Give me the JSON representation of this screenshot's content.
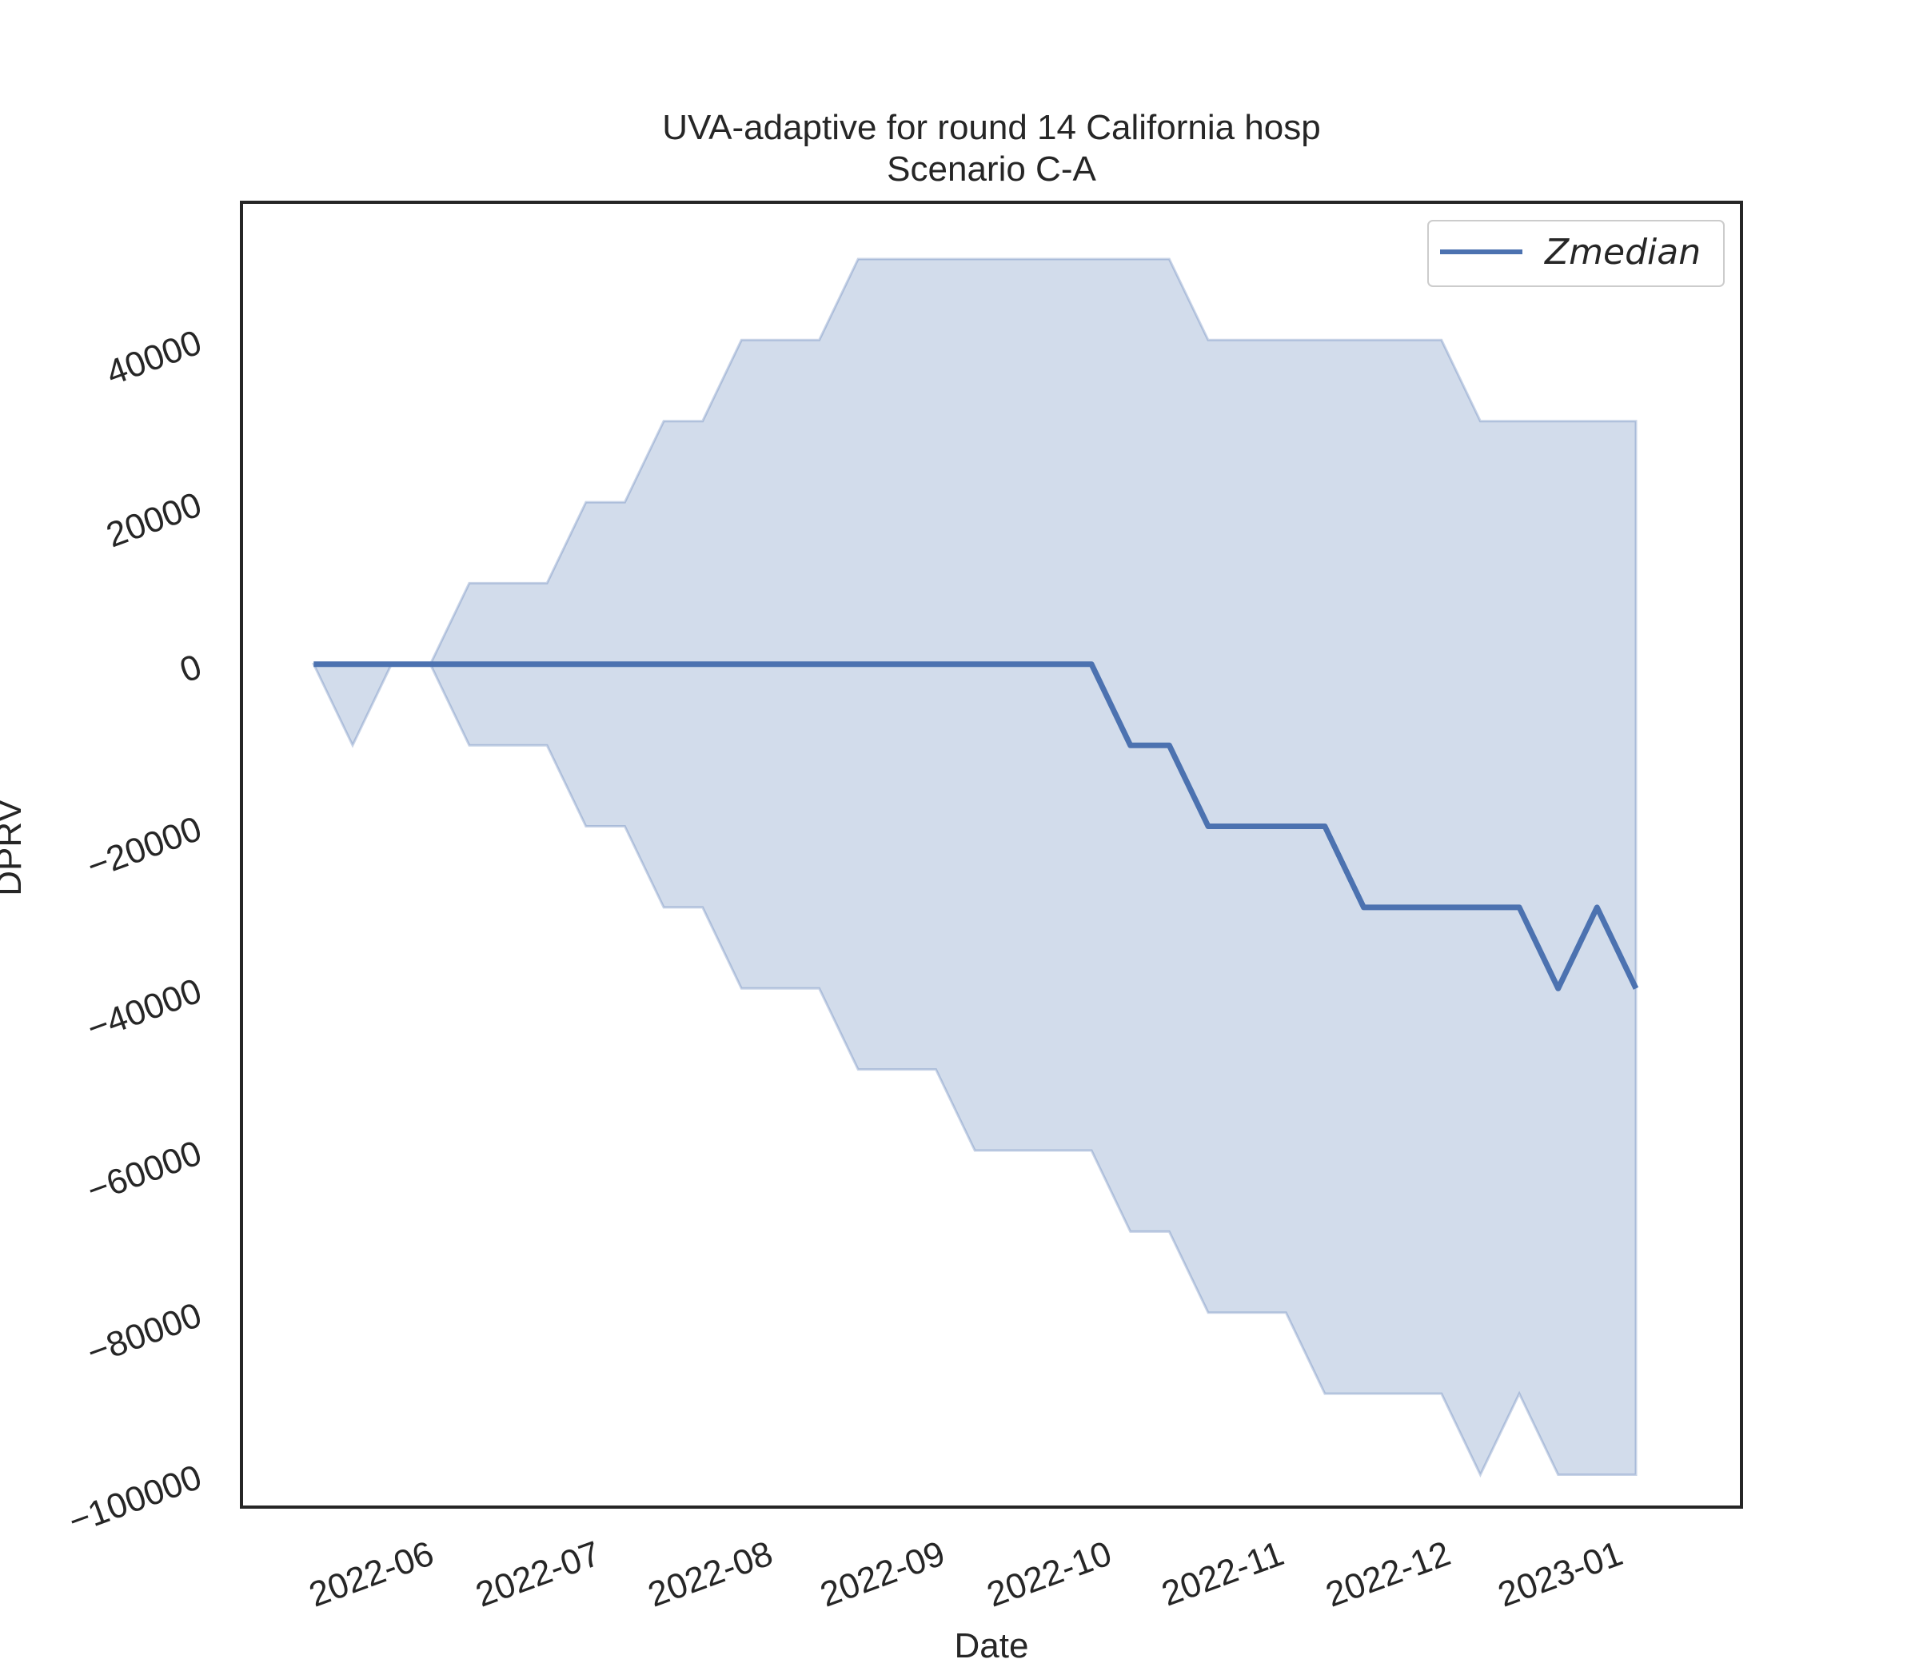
{
  "chart_data": {
    "type": "line",
    "title": "UVA-adaptive for round 14 California hosp",
    "subtitle": "Scenario C-A",
    "xlabel": "Date",
    "ylabel": "DPRV",
    "xlim": [
      "2022-05-01",
      "2023-01-26"
    ],
    "ylim": [
      -104000,
      57000
    ],
    "x_ticks": [
      "2022-06-01",
      "2022-07-01",
      "2022-08-01",
      "2022-09-01",
      "2022-10-01",
      "2022-11-01",
      "2022-12-01",
      "2023-01-01"
    ],
    "x_tick_labels": [
      "2022-06",
      "2022-07",
      "2022-08",
      "2022-09",
      "2022-10",
      "2022-11",
      "2022-12",
      "2023-01"
    ],
    "y_ticks": [
      -100000,
      -80000,
      -60000,
      -40000,
      -20000,
      0,
      20000,
      40000
    ],
    "y_tick_labels": [
      "−100000",
      "−80000",
      "−60000",
      "−40000",
      "−20000",
      "0",
      "20000",
      "40000"
    ],
    "grid": false,
    "legend": {
      "placement": "top-right",
      "entries": [
        "Zmedian"
      ]
    },
    "colors": {
      "line": "#4c72b0",
      "band": "#4c72b0"
    },
    "x": [
      "2022-05-14",
      "2022-05-21",
      "2022-05-28",
      "2022-06-04",
      "2022-06-11",
      "2022-06-18",
      "2022-06-25",
      "2022-07-02",
      "2022-07-09",
      "2022-07-16",
      "2022-07-23",
      "2022-07-30",
      "2022-08-06",
      "2022-08-13",
      "2022-08-20",
      "2022-08-27",
      "2022-09-03",
      "2022-09-10",
      "2022-09-17",
      "2022-09-24",
      "2022-10-01",
      "2022-10-08",
      "2022-10-15",
      "2022-10-22",
      "2022-10-29",
      "2022-11-05",
      "2022-11-12",
      "2022-11-19",
      "2022-11-26",
      "2022-12-03",
      "2022-12-10",
      "2022-12-17",
      "2022-12-24",
      "2022-12-31",
      "2023-01-07"
    ],
    "series": [
      {
        "name": "Zmedian",
        "values": [
          0,
          0,
          0,
          0,
          0,
          0,
          0,
          0,
          0,
          0,
          0,
          0,
          0,
          0,
          0,
          0,
          0,
          0,
          0,
          0,
          0,
          -10000,
          -10000,
          -20000,
          -20000,
          -20000,
          -20000,
          -30000,
          -30000,
          -30000,
          -30000,
          -30000,
          -40000,
          -30000,
          -40000
        ],
        "upper": [
          0,
          0,
          0,
          0,
          10000,
          10000,
          10000,
          20000,
          20000,
          30000,
          30000,
          40000,
          40000,
          40000,
          50000,
          50000,
          50000,
          50000,
          50000,
          50000,
          50000,
          50000,
          50000,
          40000,
          40000,
          40000,
          40000,
          40000,
          40000,
          40000,
          30000,
          30000,
          30000,
          30000,
          30000
        ],
        "lower": [
          0,
          -10000,
          0,
          0,
          -10000,
          -10000,
          -10000,
          -20000,
          -20000,
          -30000,
          -30000,
          -40000,
          -40000,
          -40000,
          -50000,
          -50000,
          -50000,
          -60000,
          -60000,
          -60000,
          -60000,
          -70000,
          -70000,
          -80000,
          -80000,
          -80000,
          -90000,
          -90000,
          -90000,
          -90000,
          -100000,
          -90000,
          -100000,
          -100000,
          -100000
        ]
      }
    ]
  }
}
